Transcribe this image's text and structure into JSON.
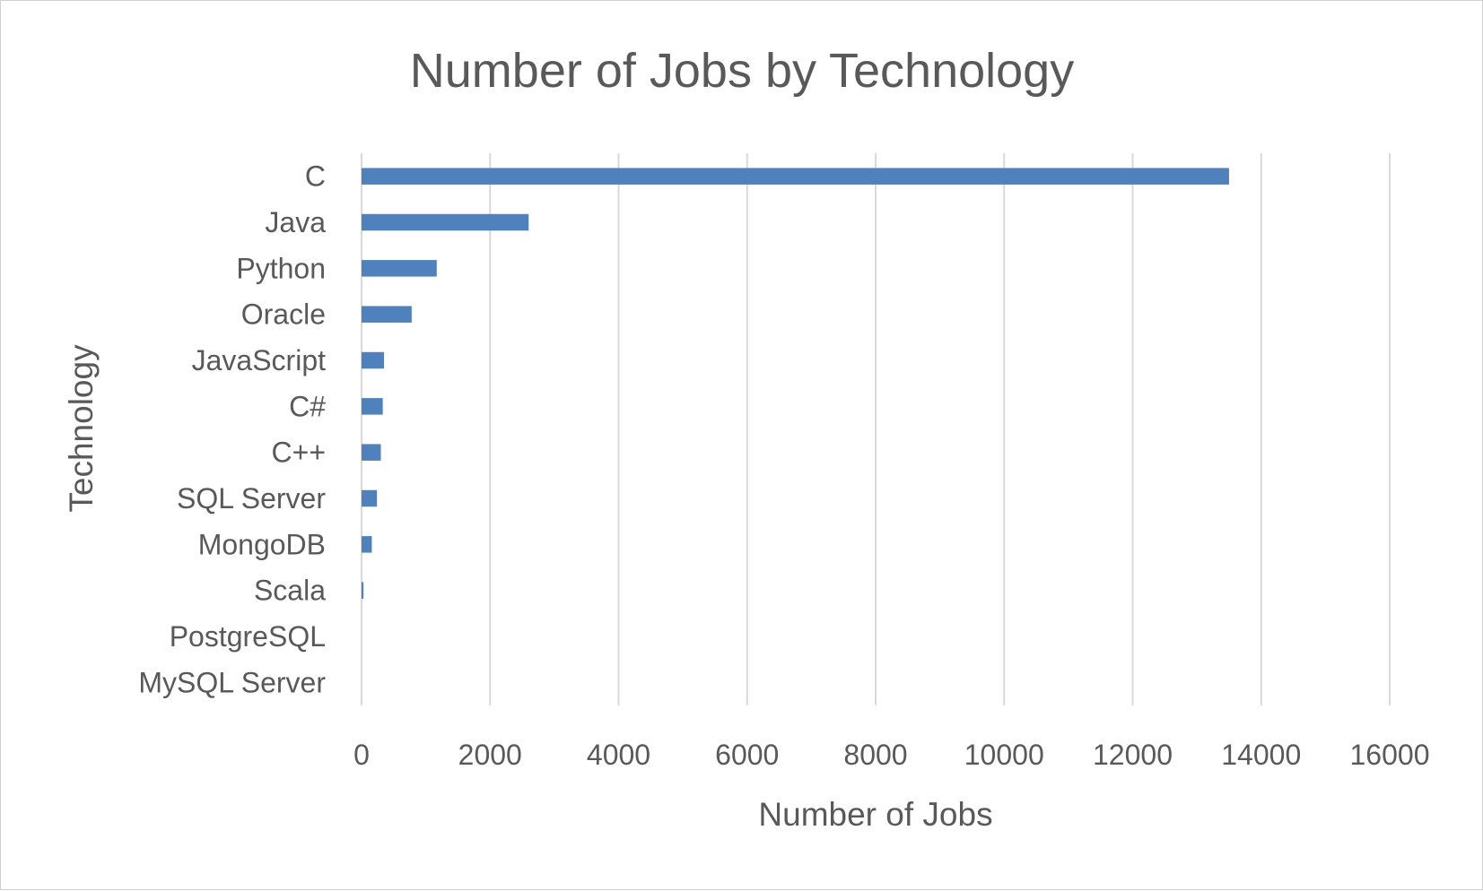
{
  "chart_data": {
    "type": "bar",
    "orientation": "horizontal",
    "title": "Number of Jobs by Technology",
    "xlabel": "Number of Jobs",
    "ylabel": "Technology",
    "categories": [
      "C",
      "Java",
      "Python",
      "Oracle",
      "JavaScript",
      "C#",
      "C++",
      "SQL Server",
      "MongoDB",
      "Scala",
      "PostgreSQL",
      "MySQL Server"
    ],
    "values": [
      13500,
      2600,
      1170,
      780,
      350,
      330,
      300,
      240,
      160,
      30,
      0,
      0
    ],
    "xlim": [
      0,
      16000
    ],
    "xticks": [
      "0",
      "2000",
      "4000",
      "6000",
      "8000",
      "10000",
      "12000",
      "14000",
      "16000"
    ],
    "grid": "vertical",
    "legend": "none",
    "bar_color": "#4f81bd"
  }
}
